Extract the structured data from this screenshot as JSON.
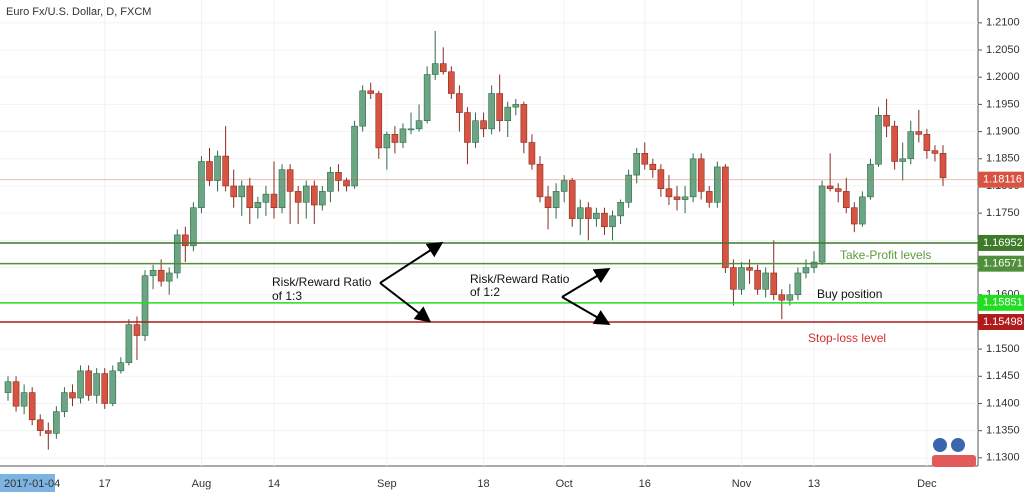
{
  "chart_data": {
    "type": "candlestick",
    "title": "Euro Fx/U.S. Dollar, D, FXCM",
    "cursor_date_label": "2017-01-04",
    "up_color": "#6ba583",
    "down_color": "#d75442",
    "ylim": [
      1.1285,
      1.2142
    ],
    "yticks": [
      {
        "value": 1.13,
        "label": "1.1300"
      },
      {
        "value": 1.135,
        "label": "1.1350"
      },
      {
        "value": 1.14,
        "label": "1.1400"
      },
      {
        "value": 1.145,
        "label": "1.1450"
      },
      {
        "value": 1.15,
        "label": "1.1500"
      },
      {
        "value": 1.155,
        "label": "1.1550"
      },
      {
        "value": 1.16,
        "label": "1.1600"
      },
      {
        "value": 1.165,
        "label": "1.1650"
      },
      {
        "value": 1.17,
        "label": "1.1700"
      },
      {
        "value": 1.175,
        "label": "1.1750"
      },
      {
        "value": 1.18,
        "label": "1.1800"
      },
      {
        "value": 1.185,
        "label": "1.1850"
      },
      {
        "value": 1.19,
        "label": "1.1900"
      },
      {
        "value": 1.195,
        "label": "1.1950"
      },
      {
        "value": 1.2,
        "label": "1.2000"
      },
      {
        "value": 1.205,
        "label": "1.2050"
      },
      {
        "value": 1.21,
        "label": "1.2100"
      }
    ],
    "categories": [
      null,
      null,
      null,
      null,
      null,
      null,
      null,
      null,
      null,
      null,
      null,
      null,
      "17",
      null,
      null,
      null,
      null,
      null,
      null,
      null,
      null,
      null,
      null,
      null,
      "Aug",
      null,
      null,
      null,
      null,
      null,
      null,
      null,
      null,
      "14",
      null,
      null,
      null,
      null,
      null,
      null,
      null,
      null,
      null,
      null,
      null,
      null,
      null,
      "Sep",
      null,
      null,
      null,
      null,
      null,
      null,
      null,
      null,
      null,
      null,
      null,
      "18",
      null,
      null,
      null,
      null,
      null,
      null,
      null,
      null,
      null,
      "Oct",
      null,
      null,
      null,
      null,
      null,
      null,
      null,
      null,
      null,
      "16",
      null,
      null,
      null,
      null,
      null,
      null,
      null,
      null,
      null,
      null,
      null,
      "Nov",
      null,
      null,
      null,
      null,
      null,
      null,
      null,
      null,
      "13",
      null,
      null,
      null,
      null,
      null,
      null,
      null,
      null,
      null,
      null,
      null,
      null,
      null,
      "Dec",
      null,
      null
    ],
    "ohlc": [
      [
        1.142,
        1.145,
        1.1405,
        1.144
      ],
      [
        1.144,
        1.145,
        1.1385,
        1.1395
      ],
      [
        1.1395,
        1.1435,
        1.138,
        1.142
      ],
      [
        1.142,
        1.143,
        1.136,
        1.137
      ],
      [
        1.137,
        1.138,
        1.134,
        1.135
      ],
      [
        1.135,
        1.1365,
        1.1315,
        1.1345
      ],
      [
        1.1345,
        1.1395,
        1.1335,
        1.1385
      ],
      [
        1.1385,
        1.143,
        1.1375,
        1.142
      ],
      [
        1.142,
        1.1435,
        1.1395,
        1.141
      ],
      [
        1.141,
        1.147,
        1.14,
        1.146
      ],
      [
        1.146,
        1.147,
        1.1405,
        1.1415
      ],
      [
        1.1415,
        1.1465,
        1.14,
        1.1455
      ],
      [
        1.1455,
        1.1465,
        1.139,
        1.14
      ],
      [
        1.14,
        1.147,
        1.1395,
        1.146
      ],
      [
        1.146,
        1.1485,
        1.1455,
        1.1475
      ],
      [
        1.1475,
        1.1555,
        1.147,
        1.1545
      ],
      [
        1.1545,
        1.156,
        1.148,
        1.1525
      ],
      [
        1.1525,
        1.1645,
        1.1515,
        1.1635
      ],
      [
        1.1635,
        1.1655,
        1.161,
        1.1645
      ],
      [
        1.1645,
        1.1665,
        1.1615,
        1.1625
      ],
      [
        1.1625,
        1.165,
        1.16,
        1.164
      ],
      [
        1.164,
        1.172,
        1.163,
        1.171
      ],
      [
        1.171,
        1.1725,
        1.166,
        1.169
      ],
      [
        1.169,
        1.177,
        1.168,
        1.176
      ],
      [
        1.176,
        1.1855,
        1.175,
        1.1845
      ],
      [
        1.1845,
        1.187,
        1.18,
        1.181
      ],
      [
        1.181,
        1.1865,
        1.179,
        1.1855
      ],
      [
        1.1855,
        1.191,
        1.179,
        1.18
      ],
      [
        1.18,
        1.183,
        1.176,
        1.178
      ],
      [
        1.178,
        1.181,
        1.1745,
        1.18
      ],
      [
        1.18,
        1.1815,
        1.173,
        1.176
      ],
      [
        1.176,
        1.178,
        1.174,
        1.177
      ],
      [
        1.177,
        1.18,
        1.1745,
        1.1785
      ],
      [
        1.1785,
        1.1845,
        1.174,
        1.176
      ],
      [
        1.176,
        1.184,
        1.175,
        1.183
      ],
      [
        1.183,
        1.184,
        1.173,
        1.179
      ],
      [
        1.179,
        1.18,
        1.173,
        1.177
      ],
      [
        1.177,
        1.181,
        1.174,
        1.18
      ],
      [
        1.18,
        1.181,
        1.173,
        1.1765
      ],
      [
        1.1765,
        1.18,
        1.1755,
        1.179
      ],
      [
        1.179,
        1.1835,
        1.177,
        1.1825
      ],
      [
        1.1825,
        1.184,
        1.179,
        1.181
      ],
      [
        1.181,
        1.1815,
        1.179,
        1.18
      ],
      [
        1.18,
        1.192,
        1.1795,
        1.191
      ],
      [
        1.191,
        1.1985,
        1.19,
        1.1975
      ],
      [
        1.1975,
        1.199,
        1.196,
        1.197
      ],
      [
        1.197,
        1.1975,
        1.185,
        1.187
      ],
      [
        1.187,
        1.19,
        1.183,
        1.1895
      ],
      [
        1.1895,
        1.191,
        1.186,
        1.188
      ],
      [
        1.188,
        1.1915,
        1.187,
        1.1905
      ],
      [
        1.1905,
        1.1935,
        1.1895,
        1.1905
      ],
      [
        1.1905,
        1.195,
        1.19,
        1.192
      ],
      [
        1.192,
        1.202,
        1.1915,
        1.2005
      ],
      [
        1.2005,
        1.2085,
        1.1995,
        1.2025
      ],
      [
        1.2025,
        1.2055,
        1.2005,
        1.201
      ],
      [
        1.201,
        1.202,
        1.196,
        1.197
      ],
      [
        1.197,
        1.1985,
        1.19,
        1.1935
      ],
      [
        1.1935,
        1.1945,
        1.184,
        1.188
      ],
      [
        1.188,
        1.1935,
        1.187,
        1.192
      ],
      [
        1.192,
        1.1935,
        1.189,
        1.1905
      ],
      [
        1.1905,
        1.1985,
        1.1895,
        1.197
      ],
      [
        1.197,
        1.2005,
        1.19,
        1.192
      ],
      [
        1.192,
        1.1955,
        1.189,
        1.1945
      ],
      [
        1.1945,
        1.196,
        1.193,
        1.195
      ],
      [
        1.195,
        1.1955,
        1.186,
        1.188
      ],
      [
        1.188,
        1.1895,
        1.183,
        1.184
      ],
      [
        1.184,
        1.1855,
        1.177,
        1.178
      ],
      [
        1.178,
        1.18,
        1.172,
        1.176
      ],
      [
        1.176,
        1.1805,
        1.174,
        1.179
      ],
      [
        1.179,
        1.182,
        1.177,
        1.181
      ],
      [
        1.181,
        1.1815,
        1.1725,
        1.174
      ],
      [
        1.174,
        1.1775,
        1.171,
        1.176
      ],
      [
        1.176,
        1.177,
        1.17,
        1.174
      ],
      [
        1.174,
        1.176,
        1.1725,
        1.175
      ],
      [
        1.175,
        1.176,
        1.171,
        1.1725
      ],
      [
        1.1725,
        1.1755,
        1.17,
        1.1745
      ],
      [
        1.1745,
        1.1775,
        1.173,
        1.177
      ],
      [
        1.177,
        1.183,
        1.176,
        1.182
      ],
      [
        1.182,
        1.187,
        1.1805,
        1.186
      ],
      [
        1.186,
        1.188,
        1.183,
        1.184
      ],
      [
        1.184,
        1.185,
        1.1815,
        1.183
      ],
      [
        1.183,
        1.184,
        1.178,
        1.1795
      ],
      [
        1.1795,
        1.182,
        1.1765,
        1.178
      ],
      [
        1.178,
        1.18,
        1.1755,
        1.1775
      ],
      [
        1.1775,
        1.18,
        1.175,
        1.178
      ],
      [
        1.178,
        1.186,
        1.177,
        1.185
      ],
      [
        1.185,
        1.186,
        1.1775,
        1.179
      ],
      [
        1.179,
        1.18,
        1.176,
        1.177
      ],
      [
        1.177,
        1.1845,
        1.176,
        1.1835
      ],
      [
        1.1835,
        1.184,
        1.164,
        1.165
      ],
      [
        1.165,
        1.1665,
        1.158,
        1.161
      ],
      [
        1.161,
        1.166,
        1.16,
        1.165
      ],
      [
        1.165,
        1.1665,
        1.162,
        1.1645
      ],
      [
        1.1645,
        1.1655,
        1.16,
        1.161
      ],
      [
        1.161,
        1.165,
        1.1595,
        1.164
      ],
      [
        1.164,
        1.17,
        1.159,
        1.16
      ],
      [
        1.16,
        1.161,
        1.1555,
        1.159
      ],
      [
        1.159,
        1.162,
        1.158,
        1.16
      ],
      [
        1.16,
        1.165,
        1.159,
        1.164
      ],
      [
        1.164,
        1.1665,
        1.163,
        1.165
      ],
      [
        1.165,
        1.168,
        1.164,
        1.166
      ],
      [
        1.166,
        1.181,
        1.1655,
        1.18
      ],
      [
        1.18,
        1.186,
        1.179,
        1.1795
      ],
      [
        1.1795,
        1.1805,
        1.177,
        1.179
      ],
      [
        1.179,
        1.1815,
        1.175,
        1.176
      ],
      [
        1.176,
        1.177,
        1.1715,
        1.173
      ],
      [
        1.173,
        1.179,
        1.1725,
        1.178
      ],
      [
        1.178,
        1.185,
        1.1775,
        1.184
      ],
      [
        1.184,
        1.1945,
        1.1835,
        1.193
      ],
      [
        1.193,
        1.196,
        1.189,
        1.191
      ],
      [
        1.191,
        1.192,
        1.183,
        1.1845
      ],
      [
        1.1845,
        1.188,
        1.181,
        1.185
      ],
      [
        1.185,
        1.192,
        1.184,
        1.19
      ],
      [
        1.19,
        1.194,
        1.188,
        1.1895
      ],
      [
        1.1895,
        1.1905,
        1.185,
        1.1865
      ],
      [
        1.1865,
        1.1875,
        1.1845,
        1.186
      ],
      [
        1.186,
        1.1875,
        1.18,
        1.1815
      ]
    ],
    "last_price": {
      "value": 1.18116,
      "color": "#d75442"
    },
    "levels": [
      {
        "value": 1.16952,
        "color": "#3d7a2a"
      },
      {
        "value": 1.16571,
        "color": "#4f8f3a"
      },
      {
        "value": 1.15851,
        "color": "#22dd22"
      },
      {
        "value": 1.15498,
        "color": "#b01c1c"
      }
    ],
    "annotations": {
      "take_profit": "Take-Profit levels",
      "buy": "Buy position",
      "stop_loss": "Stop-loss level",
      "ratio_1_3": [
        "Risk/Reward Ratio",
        "of 1:3"
      ],
      "ratio_1_2": [
        "Risk/Reward Ratio",
        "of 1:2"
      ]
    }
  }
}
